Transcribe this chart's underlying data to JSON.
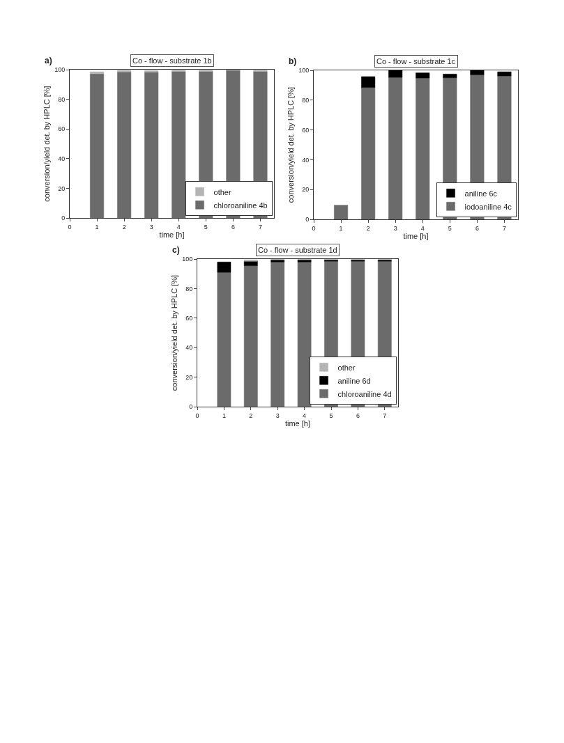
{
  "chart_data": [
    {
      "type": "bar",
      "stacked": true,
      "title": "Co - flow - substrate 1b",
      "xlabel": "time [h]",
      "ylabel": "conversion/yield det. by HPLC [%]",
      "annotations": [
        "a)"
      ],
      "x": [
        1,
        2,
        3,
        4,
        5,
        6,
        7
      ],
      "xlim": [
        0,
        7.5
      ],
      "xticks": [
        0,
        1,
        2,
        3,
        4,
        5,
        6,
        7
      ],
      "ylim": [
        0,
        100
      ],
      "yticks": [
        0,
        20,
        40,
        60,
        80,
        100
      ],
      "legend": "bottom right",
      "series": [
        {
          "name": "chloroaniline 4b",
          "color": "#6b6b6b",
          "values": [
            97.2,
            98.5,
            98.3,
            98.8,
            98.8,
            99.5,
            98.8
          ]
        },
        {
          "name": "other",
          "color": "#b4b4b4",
          "values": [
            1.3,
            1.0,
            1.0,
            0.8,
            0.8,
            0.4,
            0.8
          ]
        }
      ]
    },
    {
      "type": "bar",
      "stacked": true,
      "title": "Co - flow - substrate 1c",
      "xlabel": "time [h]",
      "ylabel": "conversion/yield det. by HPLC [%]",
      "annotations": [
        "b)"
      ],
      "x": [
        1,
        2,
        3,
        4,
        5,
        6,
        7
      ],
      "xlim": [
        0,
        7.5
      ],
      "xticks": [
        0,
        1,
        2,
        3,
        4,
        5,
        6,
        7
      ],
      "ylim": [
        0,
        100
      ],
      "yticks": [
        0,
        20,
        40,
        60,
        80,
        100
      ],
      "legend": "bottom right",
      "series": [
        {
          "name": "iodoaniline 4c",
          "color": "#6b6b6b",
          "values": [
            9.5,
            88.5,
            95.3,
            94.8,
            95.0,
            97.0,
            96.2
          ]
        },
        {
          "name": "aniline 6c",
          "color": "#000000",
          "values": [
            null,
            7.3,
            4.7,
            3.5,
            2.5,
            3.0,
            2.8
          ]
        }
      ]
    },
    {
      "type": "bar",
      "stacked": true,
      "title": "Co - flow - substrate 1d",
      "xlabel": "time [h]",
      "ylabel": "conversion/yield det. by HPLC [%]",
      "annotations": [
        "c)"
      ],
      "x": [
        1,
        2,
        3,
        4,
        5,
        6,
        7
      ],
      "xlim": [
        0,
        7.5
      ],
      "xticks": [
        0,
        1,
        2,
        3,
        4,
        5,
        6,
        7
      ],
      "ylim": [
        0,
        100
      ],
      "yticks": [
        0,
        20,
        40,
        60,
        80,
        100
      ],
      "legend": "bottom right",
      "series": [
        {
          "name": "chloroaniline 4d",
          "color": "#6b6b6b",
          "values": [
            91.0,
            95.5,
            98.0,
            98.0,
            98.5,
            98.5,
            98.5
          ]
        },
        {
          "name": "aniline 6d",
          "color": "#000000",
          "values": [
            7.0,
            3.0,
            1.5,
            1.5,
            1.0,
            1.0,
            1.0
          ]
        },
        {
          "name": "other",
          "color": "#b4b4b4",
          "values": [
            null,
            1.0,
            0.3,
            0.3,
            0.3,
            0.3,
            0.3
          ]
        }
      ]
    }
  ]
}
